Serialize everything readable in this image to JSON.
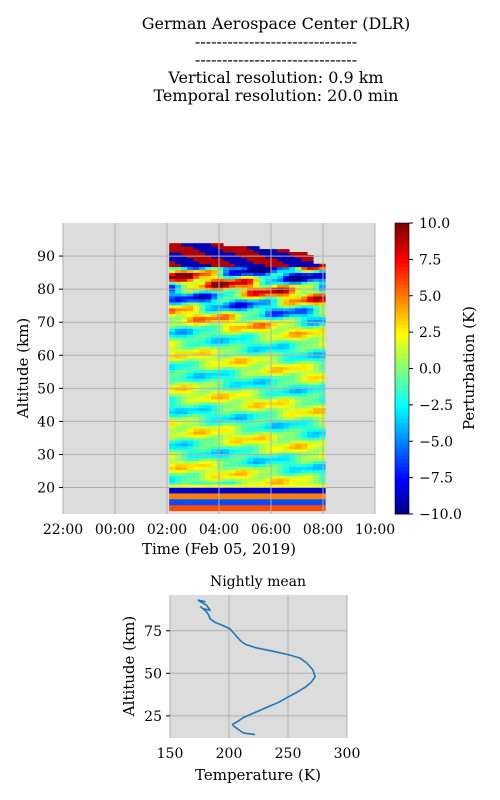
{
  "header": {
    "line1": "German Aerospace Center (DLR)",
    "line2": "------------------------------",
    "line3": "------------------------------",
    "line4": "Vertical resolution: 0.9 km",
    "line5": "Temporal resolution: 20.0 min"
  },
  "colors": {
    "panel_bg": "#dcdcdc",
    "grid": "#b0b0b0",
    "line": "#1f77b4"
  },
  "chart_data": [
    {
      "type": "heatmap",
      "colormap": "jet",
      "xlabel": "Time (Feb 05, 2019)",
      "ylabel": "Altitude (km)",
      "colorbar_label": "Perturbation (K)",
      "xlim_hours": [
        22,
        34
      ],
      "ylim": [
        12,
        100
      ],
      "x_ticks": [
        "22:00",
        "00:00",
        "02:00",
        "04:00",
        "06:00",
        "08:00",
        "10:00"
      ],
      "y_ticks": [
        20,
        30,
        40,
        50,
        60,
        70,
        80,
        90
      ],
      "clim": [
        -10,
        10
      ],
      "colorbar_ticks": [
        "10.0",
        "7.5",
        "5.0",
        "2.5",
        "0.0",
        "−2.5",
        "−5.0",
        "−7.5",
        "−10.0"
      ],
      "data_time_range": [
        "02:05",
        "08:05"
      ],
      "data_altitude_range": [
        13,
        93
      ],
      "grid": true
    },
    {
      "type": "line",
      "title": "Nightly mean",
      "xlabel": "Temperature (K)",
      "ylabel": "Altitude (km)",
      "xlim": [
        150,
        300
      ],
      "ylim": [
        12,
        96
      ],
      "x_ticks": [
        150,
        200,
        250,
        300
      ],
      "y_ticks": [
        25,
        50,
        75
      ],
      "grid": true,
      "series": [
        {
          "x": [
            222,
            212,
            208,
            204,
            203,
            208,
            212,
            222,
            232,
            242,
            250,
            258,
            265,
            270,
            273,
            271,
            266,
            260,
            250,
            237,
            223,
            214,
            210,
            206,
            201,
            195,
            188,
            184,
            183,
            181,
            178,
            176,
            178,
            184,
            181,
            176,
            174,
            180
          ],
          "y": [
            14,
            15,
            17,
            19,
            20,
            22,
            24,
            27,
            30,
            33,
            36,
            39,
            42,
            45,
            48,
            52,
            56,
            59,
            61,
            63,
            65,
            67,
            69,
            72,
            76,
            78,
            80,
            82,
            84,
            86,
            88,
            89,
            88,
            87,
            90,
            92,
            93,
            92
          ]
        }
      ]
    }
  ]
}
